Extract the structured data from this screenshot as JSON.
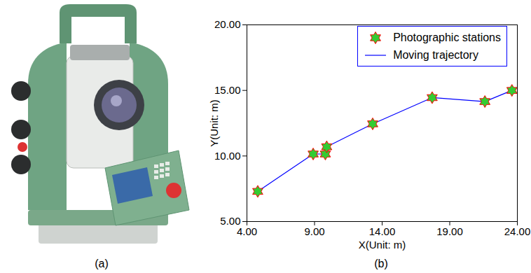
{
  "chart_data": {
    "type": "line",
    "xlabel": "X(Unit: m)",
    "ylabel": "Y(Unit: m)",
    "x": [
      4.8,
      8.9,
      9.8,
      9.9,
      13.3,
      17.7,
      21.6,
      23.6
    ],
    "series": [
      {
        "name": "Photographic stations",
        "type": "scatter",
        "marker": "hexagram",
        "color": "#33cc33",
        "values": [
          7.3,
          10.15,
          10.15,
          10.7,
          12.45,
          14.45,
          14.15,
          15.0
        ]
      },
      {
        "name": "Moving trajectory",
        "type": "line",
        "line_style": "solid",
        "color": "#0000ff",
        "values": [
          7.3,
          10.15,
          10.15,
          10.7,
          12.45,
          14.45,
          14.15,
          15.0
        ]
      }
    ],
    "xlim": [
      4,
      24
    ],
    "xticks": [
      {
        "value": 4,
        "label": "4.00"
      },
      {
        "value": 9,
        "label": "9.00"
      },
      {
        "value": 14,
        "label": "14.00"
      },
      {
        "value": 19,
        "label": "19.00"
      },
      {
        "value": 24,
        "label": "24.00"
      }
    ],
    "ylim": [
      5,
      20
    ],
    "yticks": [
      {
        "value": 5,
        "label": "5.00"
      },
      {
        "value": 10,
        "label": "10.00"
      },
      {
        "value": 15,
        "label": "15.00"
      },
      {
        "value": 20,
        "label": "20.00"
      }
    ],
    "grid": false,
    "legend": "top-right"
  },
  "panel_labels": {
    "a": "(a)",
    "b": "(b)"
  }
}
